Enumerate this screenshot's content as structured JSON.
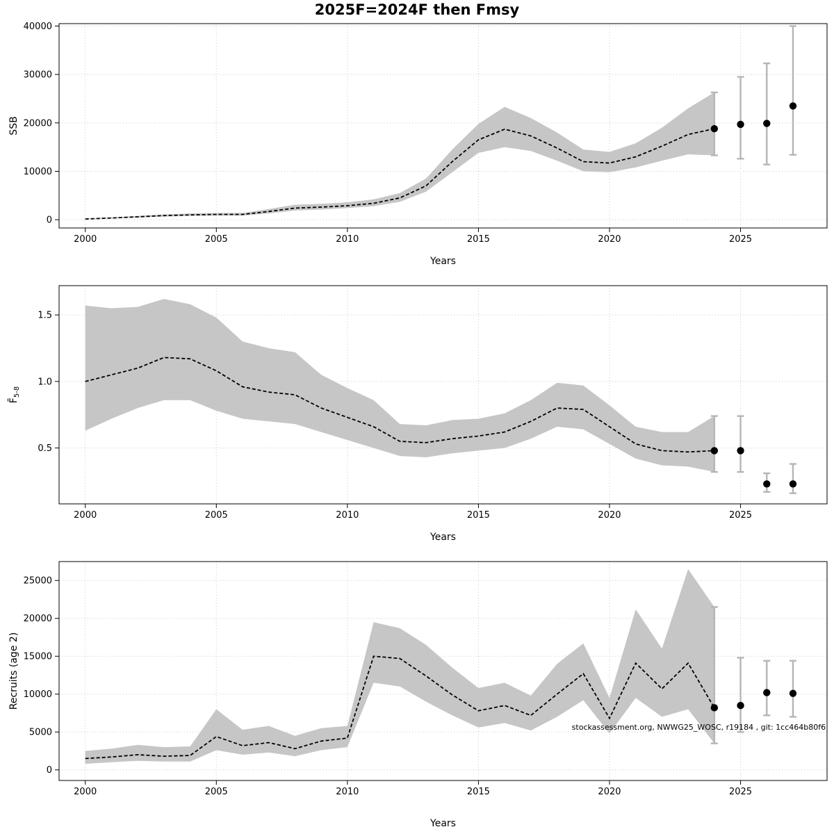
{
  "title": "2025F=2024F then Fmsy",
  "colors": {
    "band": "#c6c6c6",
    "median_line": "#000000",
    "errorbar": "#b5b5b5",
    "grid": "#c8c8c8",
    "dot": "#000000",
    "box": "#000000"
  },
  "chart_data": [
    {
      "type": "line",
      "id": "ssb",
      "ylabel": "SSB",
      "ylabel_sub": "",
      "xlabel": "Years",
      "xlim": [
        1999,
        2028.3
      ],
      "ylim": [
        -1700,
        40500
      ],
      "xticks": [
        2000,
        2005,
        2010,
        2015,
        2020,
        2025
      ],
      "yticks": [
        0,
        10000,
        20000,
        30000,
        40000
      ],
      "ytick_labels": [
        "0",
        "10000",
        "20000",
        "30000",
        "40000"
      ],
      "grid": true,
      "years": [
        2000,
        2001,
        2002,
        2003,
        2004,
        2005,
        2006,
        2007,
        2008,
        2009,
        2010,
        2011,
        2012,
        2013,
        2014,
        2015,
        2016,
        2017,
        2018,
        2019,
        2020,
        2021,
        2022,
        2023,
        2024
      ],
      "median": [
        150,
        350,
        600,
        850,
        1000,
        1100,
        1100,
        1700,
        2400,
        2600,
        2900,
        3400,
        4500,
        7000,
        12000,
        16500,
        18700,
        17300,
        14800,
        12000,
        11700,
        13000,
        15200,
        17600,
        18800
      ],
      "lower": [
        100,
        250,
        450,
        650,
        800,
        850,
        850,
        1300,
        1900,
        2100,
        2400,
        2800,
        3700,
        5800,
        9800,
        13800,
        15000,
        14200,
        12200,
        10000,
        9800,
        10800,
        12200,
        13500,
        13300
      ],
      "upper": [
        220,
        500,
        800,
        1100,
        1300,
        1400,
        1400,
        2200,
        3100,
        3300,
        3600,
        4200,
        5500,
        8500,
        14500,
        19800,
        23300,
        21000,
        18000,
        14500,
        14000,
        15800,
        19000,
        23000,
        26300
      ],
      "dots": [
        {
          "year": 2024,
          "value": 18800,
          "lo": 13300,
          "hi": 26300
        },
        {
          "year": 2025,
          "value": 19700,
          "lo": 12600,
          "hi": 29500
        },
        {
          "year": 2026,
          "value": 19900,
          "lo": 11400,
          "hi": 32300
        },
        {
          "year": 2027,
          "value": 23500,
          "lo": 13400,
          "hi": 40000
        }
      ]
    },
    {
      "type": "line",
      "id": "fbar",
      "ylabel": "F̄",
      "ylabel_sub": "5-8",
      "xlabel": "Years",
      "xlim": [
        1999,
        2028.3
      ],
      "ylim": [
        0.08,
        1.72
      ],
      "xticks": [
        2000,
        2005,
        2010,
        2015,
        2020,
        2025
      ],
      "yticks": [
        0.5,
        1.0,
        1.5
      ],
      "ytick_labels": [
        "0.5",
        "1.0",
        "1.5"
      ],
      "grid": true,
      "years": [
        2000,
        2001,
        2002,
        2003,
        2004,
        2005,
        2006,
        2007,
        2008,
        2009,
        2010,
        2011,
        2012,
        2013,
        2014,
        2015,
        2016,
        2017,
        2018,
        2019,
        2020,
        2021,
        2022,
        2023,
        2024
      ],
      "median": [
        1.0,
        1.05,
        1.1,
        1.18,
        1.17,
        1.08,
        0.96,
        0.92,
        0.9,
        0.8,
        0.73,
        0.66,
        0.55,
        0.54,
        0.57,
        0.59,
        0.62,
        0.7,
        0.8,
        0.79,
        0.66,
        0.53,
        0.48,
        0.47,
        0.48
      ],
      "lower": [
        0.63,
        0.72,
        0.8,
        0.86,
        0.86,
        0.78,
        0.72,
        0.7,
        0.68,
        0.62,
        0.56,
        0.5,
        0.44,
        0.43,
        0.46,
        0.48,
        0.5,
        0.57,
        0.66,
        0.64,
        0.53,
        0.42,
        0.37,
        0.36,
        0.32
      ],
      "upper": [
        1.57,
        1.55,
        1.56,
        1.62,
        1.58,
        1.48,
        1.3,
        1.25,
        1.22,
        1.05,
        0.95,
        0.86,
        0.68,
        0.67,
        0.71,
        0.72,
        0.76,
        0.86,
        0.99,
        0.97,
        0.82,
        0.66,
        0.62,
        0.62,
        0.74
      ],
      "dots": [
        {
          "year": 2024,
          "value": 0.48,
          "lo": 0.32,
          "hi": 0.74
        },
        {
          "year": 2025,
          "value": 0.48,
          "lo": 0.32,
          "hi": 0.74
        },
        {
          "year": 2026,
          "value": 0.23,
          "lo": 0.17,
          "hi": 0.31
        },
        {
          "year": 2027,
          "value": 0.23,
          "lo": 0.16,
          "hi": 0.38
        }
      ]
    },
    {
      "type": "line",
      "id": "recruits",
      "ylabel": "Recruits (age 2)",
      "ylabel_sub": "",
      "xlabel": "Years",
      "xlim": [
        1999,
        2028.3
      ],
      "ylim": [
        -1400,
        27500
      ],
      "xticks": [
        2000,
        2005,
        2010,
        2015,
        2020,
        2025
      ],
      "yticks": [
        0,
        5000,
        10000,
        15000,
        20000,
        25000
      ],
      "ytick_labels": [
        "0",
        "5000",
        "10000",
        "15000",
        "20000",
        "25000"
      ],
      "grid": true,
      "years": [
        2000,
        2001,
        2002,
        2003,
        2004,
        2005,
        2006,
        2007,
        2008,
        2009,
        2010,
        2011,
        2012,
        2013,
        2014,
        2015,
        2016,
        2017,
        2018,
        2019,
        2020,
        2021,
        2022,
        2023,
        2024
      ],
      "median": [
        1500,
        1700,
        2000,
        1800,
        1900,
        4400,
        3200,
        3600,
        2800,
        3800,
        4200,
        15000,
        14700,
        12400,
        9900,
        7800,
        8500,
        7200,
        10000,
        12700,
        6800,
        14100,
        10700,
        14100,
        8200
      ],
      "lower": [
        800,
        1000,
        1200,
        1100,
        1100,
        2600,
        2000,
        2300,
        1800,
        2600,
        3000,
        11500,
        11000,
        9000,
        7200,
        5600,
        6200,
        5200,
        7000,
        9200,
        4800,
        9500,
        7000,
        8000,
        3500
      ],
      "upper": [
        2500,
        2800,
        3300,
        3000,
        3100,
        8000,
        5300,
        5800,
        4500,
        5500,
        5800,
        19500,
        18700,
        16500,
        13500,
        10800,
        11500,
        9800,
        14000,
        16700,
        9500,
        21200,
        16000,
        26500,
        21500
      ],
      "dots": [
        {
          "year": 2024,
          "value": 8200,
          "lo": 3500,
          "hi": 21500
        },
        {
          "year": 2025,
          "value": 8500,
          "lo": 5000,
          "hi": 14800
        },
        {
          "year": 2026,
          "value": 10200,
          "lo": 7200,
          "hi": 14400
        },
        {
          "year": 2027,
          "value": 10100,
          "lo": 7000,
          "hi": 14400
        }
      ],
      "annotation": {
        "text": "stockassessment.org, NWWG25_WOSC, r19184 , git: 1cc464b80f6",
        "year": 2028.25,
        "value": 5300,
        "anchor": "end"
      }
    }
  ]
}
